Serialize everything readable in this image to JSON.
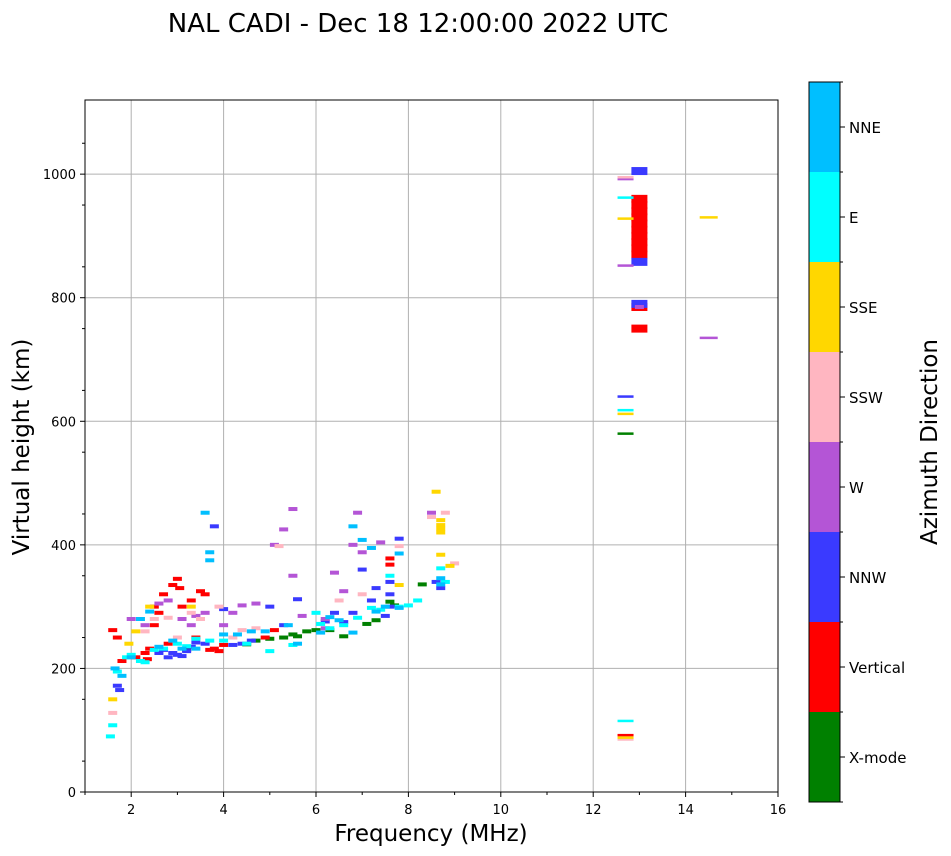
{
  "chart_data": {
    "type": "scatter",
    "title": "NAL CADI - Dec 18 12:00:00 2022 UTC",
    "xlabel": "Frequency (MHz)",
    "ylabel": "Virtual height (km)",
    "xlim": [
      1,
      16
    ],
    "ylim": [
      0,
      1120
    ],
    "xticks": [
      "2",
      "4",
      "6",
      "8",
      "10",
      "12",
      "14",
      "16"
    ],
    "xtick_values": [
      2,
      4,
      6,
      8,
      10,
      12,
      14,
      16
    ],
    "yticks": [
      "0",
      "200",
      "400",
      "600",
      "800",
      "1000"
    ],
    "ytick_values": [
      0,
      200,
      400,
      600,
      800,
      1000
    ],
    "grid": true,
    "colorbar": {
      "label": "Azimuth Direction",
      "categories": [
        {
          "name": "X-mode",
          "color": "#008000"
        },
        {
          "name": "Vertical",
          "color": "#ff0000"
        },
        {
          "name": "NNW",
          "color": "#3a3aff"
        },
        {
          "name": "W",
          "color": "#b455d6"
        },
        {
          "name": "SSW",
          "color": "#ffb6c1"
        },
        {
          "name": "SSE",
          "color": "#ffd700"
        },
        {
          "name": "E",
          "color": "#00ffff"
        },
        {
          "name": "NNE",
          "color": "#00bfff"
        }
      ]
    },
    "series": [
      {
        "name": "X-mode",
        "points": [
          [
            4.7,
            245
          ],
          [
            5.0,
            248
          ],
          [
            5.3,
            250
          ],
          [
            5.5,
            255
          ],
          [
            5.6,
            252
          ],
          [
            5.8,
            260
          ],
          [
            6.3,
            262
          ],
          [
            6.6,
            252
          ],
          [
            7.1,
            272
          ],
          [
            7.3,
            278
          ],
          [
            7.6,
            308
          ],
          [
            7.7,
            302
          ],
          [
            8.3,
            336
          ],
          [
            3.2,
            230
          ],
          [
            4.5,
            239
          ],
          [
            6.0,
            262
          ],
          [
            12.7,
            580
          ]
        ]
      },
      {
        "name": "Vertical",
        "points": [
          [
            1.6,
            262
          ],
          [
            1.7,
            250
          ],
          [
            1.8,
            212
          ],
          [
            2.1,
            218
          ],
          [
            2.3,
            225
          ],
          [
            2.4,
            232
          ],
          [
            2.5,
            300
          ],
          [
            2.6,
            290
          ],
          [
            2.7,
            320
          ],
          [
            2.8,
            240
          ],
          [
            2.9,
            335
          ],
          [
            3.0,
            345
          ],
          [
            3.1,
            300
          ],
          [
            3.3,
            310
          ],
          [
            3.5,
            325
          ],
          [
            3.6,
            320
          ],
          [
            3.8,
            232
          ],
          [
            3.9,
            228
          ],
          [
            4.0,
            238
          ],
          [
            3.4,
            250
          ],
          [
            3.7,
            230
          ],
          [
            2.35,
            215
          ],
          [
            2.5,
            270
          ],
          [
            3.05,
            330
          ],
          [
            4.9,
            250
          ],
          [
            5.1,
            262
          ],
          [
            7.6,
            378
          ],
          [
            7.6,
            368
          ],
          [
            13.0,
            750
          ],
          [
            13.0,
            870
          ],
          [
            13.0,
            880
          ],
          [
            13.0,
            890
          ],
          [
            13.0,
            900
          ],
          [
            13.0,
            910
          ],
          [
            13.0,
            920
          ],
          [
            13.0,
            930
          ],
          [
            13.0,
            940
          ],
          [
            13.0,
            950
          ],
          [
            13.0,
            960
          ],
          [
            13.0,
            785
          ],
          [
            12.7,
            92
          ]
        ]
      },
      {
        "name": "NNW",
        "points": [
          [
            1.7,
            172
          ],
          [
            1.75,
            165
          ],
          [
            2.6,
            225
          ],
          [
            2.7,
            230
          ],
          [
            2.8,
            218
          ],
          [
            2.9,
            225
          ],
          [
            3.0,
            222
          ],
          [
            3.1,
            220
          ],
          [
            3.2,
            228
          ],
          [
            3.3,
            235
          ],
          [
            3.4,
            242
          ],
          [
            3.6,
            240
          ],
          [
            3.8,
            430
          ],
          [
            4.2,
            238
          ],
          [
            4.4,
            240
          ],
          [
            4.6,
            245
          ],
          [
            5.0,
            300
          ],
          [
            5.3,
            270
          ],
          [
            5.6,
            312
          ],
          [
            6.4,
            290
          ],
          [
            6.6,
            275
          ],
          [
            6.8,
            290
          ],
          [
            7.0,
            360
          ],
          [
            7.2,
            310
          ],
          [
            7.3,
            330
          ],
          [
            7.5,
            285
          ],
          [
            7.6,
            340
          ],
          [
            7.6,
            320
          ],
          [
            7.6,
            300
          ],
          [
            7.8,
            410
          ],
          [
            8.6,
            340
          ],
          [
            8.7,
            330
          ],
          [
            12.7,
            640
          ],
          [
            13.0,
            858
          ],
          [
            13.0,
            1005
          ],
          [
            13.0,
            790
          ],
          [
            4.0,
            296
          ],
          [
            6.2,
            276
          ]
        ]
      },
      {
        "name": "W",
        "points": [
          [
            2.0,
            280
          ],
          [
            2.3,
            270
          ],
          [
            2.8,
            310
          ],
          [
            3.1,
            280
          ],
          [
            3.3,
            270
          ],
          [
            3.6,
            290
          ],
          [
            4.0,
            270
          ],
          [
            4.2,
            290
          ],
          [
            4.4,
            302
          ],
          [
            4.7,
            305
          ],
          [
            5.1,
            400
          ],
          [
            5.3,
            425
          ],
          [
            5.5,
            458
          ],
          [
            5.5,
            350
          ],
          [
            6.2,
            280
          ],
          [
            6.4,
            355
          ],
          [
            6.6,
            325
          ],
          [
            6.8,
            400
          ],
          [
            6.9,
            452
          ],
          [
            7.0,
            388
          ],
          [
            7.4,
            404
          ],
          [
            8.5,
            452
          ],
          [
            12.7,
            992
          ],
          [
            12.7,
            852
          ],
          [
            13.0,
            785
          ],
          [
            14.5,
            735
          ],
          [
            5.7,
            285
          ],
          [
            3.4,
            285
          ],
          [
            2.6,
            305
          ],
          [
            6.2,
            265
          ]
        ]
      },
      {
        "name": "SSW",
        "points": [
          [
            1.6,
            128
          ],
          [
            2.3,
            260
          ],
          [
            2.5,
            280
          ],
          [
            3.0,
            250
          ],
          [
            3.3,
            290
          ],
          [
            3.5,
            280
          ],
          [
            3.9,
            300
          ],
          [
            4.2,
            250
          ],
          [
            4.7,
            265
          ],
          [
            5.2,
            398
          ],
          [
            6.5,
            310
          ],
          [
            7.0,
            320
          ],
          [
            7.8,
            398
          ],
          [
            8.5,
            445
          ],
          [
            8.8,
            452
          ],
          [
            9.0,
            370
          ],
          [
            12.7,
            995
          ],
          [
            12.7,
            85
          ],
          [
            2.8,
            282
          ],
          [
            4.4,
            262
          ]
        ]
      },
      {
        "name": "SSE",
        "points": [
          [
            1.6,
            150
          ],
          [
            1.95,
            240
          ],
          [
            2.1,
            260
          ],
          [
            2.4,
            300
          ],
          [
            3.3,
            300
          ],
          [
            8.6,
            486
          ],
          [
            8.7,
            440
          ],
          [
            8.7,
            432
          ],
          [
            8.7,
            426
          ],
          [
            8.7,
            420
          ],
          [
            8.7,
            384
          ],
          [
            8.9,
            366
          ],
          [
            12.7,
            928
          ],
          [
            12.7,
            88
          ],
          [
            14.5,
            930
          ],
          [
            12.7,
            612
          ],
          [
            7.8,
            335
          ]
        ]
      },
      {
        "name": "E",
        "points": [
          [
            1.55,
            90
          ],
          [
            1.6,
            108
          ],
          [
            1.7,
            195
          ],
          [
            1.9,
            218
          ],
          [
            2.0,
            222
          ],
          [
            2.2,
            212
          ],
          [
            2.3,
            210
          ],
          [
            2.5,
            230
          ],
          [
            2.7,
            232
          ],
          [
            3.0,
            240
          ],
          [
            3.2,
            236
          ],
          [
            3.4,
            248
          ],
          [
            3.7,
            245
          ],
          [
            4.0,
            245
          ],
          [
            4.5,
            240
          ],
          [
            5.0,
            228
          ],
          [
            5.5,
            238
          ],
          [
            6.1,
            272
          ],
          [
            6.3,
            265
          ],
          [
            6.6,
            270
          ],
          [
            6.9,
            282
          ],
          [
            7.2,
            298
          ],
          [
            7.4,
            295
          ],
          [
            7.8,
            300
          ],
          [
            8.0,
            302
          ],
          [
            8.2,
            310
          ],
          [
            8.7,
            362
          ],
          [
            8.8,
            340
          ],
          [
            12.7,
            962
          ],
          [
            12.7,
            115
          ],
          [
            12.7,
            618
          ],
          [
            7.6,
            350
          ],
          [
            6.0,
            290
          ]
        ]
      },
      {
        "name": "NNE",
        "points": [
          [
            1.65,
            200
          ],
          [
            1.8,
            188
          ],
          [
            2.0,
            218
          ],
          [
            2.2,
            280
          ],
          [
            2.4,
            292
          ],
          [
            2.6,
            235
          ],
          [
            2.9,
            245
          ],
          [
            3.1,
            232
          ],
          [
            3.4,
            232
          ],
          [
            3.6,
            452
          ],
          [
            3.7,
            388
          ],
          [
            3.7,
            375
          ],
          [
            4.0,
            255
          ],
          [
            4.3,
            255
          ],
          [
            4.6,
            260
          ],
          [
            4.9,
            260
          ],
          [
            5.4,
            270
          ],
          [
            5.6,
            240
          ],
          [
            6.1,
            258
          ],
          [
            6.5,
            278
          ],
          [
            6.8,
            430
          ],
          [
            6.8,
            258
          ],
          [
            7.0,
            408
          ],
          [
            7.3,
            292
          ],
          [
            7.5,
            300
          ],
          [
            7.8,
            386
          ],
          [
            7.8,
            298
          ],
          [
            8.7,
            346
          ],
          [
            8.7,
            336
          ],
          [
            7.2,
            395
          ],
          [
            6.3,
            283
          ]
        ]
      }
    ]
  }
}
